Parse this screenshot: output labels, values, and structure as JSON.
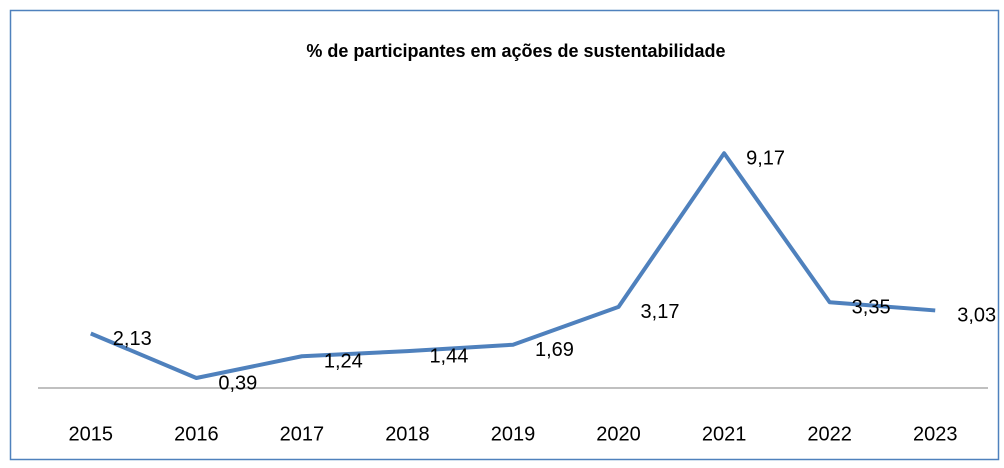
{
  "chart_data": {
    "type": "line",
    "title": "% de participantes em ações de sustentabilidade",
    "categories": [
      "2015",
      "2016",
      "2017",
      "2018",
      "2019",
      "2020",
      "2021",
      "2022",
      "2023"
    ],
    "series": [
      {
        "name": null,
        "color": "#4f81bd",
        "values": [
          2.13,
          0.39,
          1.24,
          1.44,
          1.69,
          3.17,
          9.17,
          3.35,
          3.03
        ],
        "value_labels": [
          "2,13",
          "0,39",
          "1,24",
          "1,44",
          "1,69",
          "3,17",
          "9,17",
          "3,35",
          "3,03"
        ]
      }
    ],
    "ylim": [
      0,
      10
    ]
  }
}
